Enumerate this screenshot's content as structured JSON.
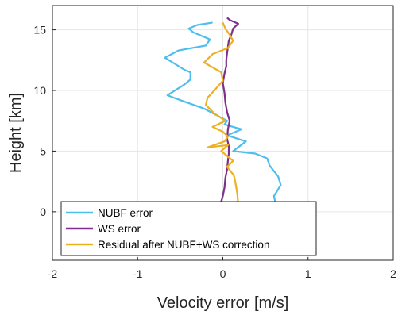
{
  "chart_data": {
    "type": "line",
    "title": "",
    "xlabel": "Velocity error [m/s]",
    "ylabel": "Height [km]",
    "xlim": [
      -2,
      2
    ],
    "ylim": [
      -4,
      17
    ],
    "xticks": [
      -2,
      -1,
      0,
      1,
      2
    ],
    "yticks": [
      0,
      5,
      10,
      15
    ],
    "grid": true,
    "legend_position": "bottom-left",
    "series": [
      {
        "name": "NUBF error",
        "color": "#4DBEEE",
        "x": [
          1.1,
          0.62,
          0.6,
          0.68,
          0.65,
          0.55,
          0.52,
          0.38,
          0.12,
          0.27,
          0.05,
          0.22,
          0.02,
          0.05,
          -0.22,
          -0.5,
          -0.65,
          -0.45,
          -0.38,
          -0.38,
          -0.45,
          -0.68,
          -0.52,
          -0.2,
          -0.15,
          -0.35,
          -0.4,
          -0.3,
          -0.12
        ],
        "y": [
          0.1,
          0.6,
          1.3,
          2.2,
          2.9,
          3.8,
          4.4,
          4.8,
          5.0,
          5.8,
          6.3,
          6.8,
          7.2,
          7.5,
          8.5,
          9.2,
          9.6,
          10.5,
          10.9,
          11.5,
          11.7,
          12.7,
          13.3,
          13.7,
          14.2,
          14.8,
          15.1,
          15.4,
          15.6
        ]
      },
      {
        "name": "WS error",
        "color": "#7E2F8E",
        "x": [
          -0.03,
          0.0,
          0.02,
          0.03,
          0.05,
          0.06,
          0.07,
          0.07,
          0.05,
          0.06,
          0.08,
          0.05,
          0.03,
          0.02,
          0.0,
          0.02,
          0.04,
          0.04,
          0.05,
          0.06,
          0.07,
          0.1,
          0.12,
          0.18,
          0.08,
          0.05
        ],
        "y": [
          0.6,
          1.3,
          2.0,
          2.8,
          3.5,
          4.2,
          4.8,
          5.4,
          6.0,
          6.8,
          7.5,
          8.2,
          9.0,
          9.8,
          10.6,
          11.4,
          12.0,
          12.5,
          13.1,
          13.6,
          14.1,
          14.6,
          15.1,
          15.5,
          15.8,
          16.0
        ]
      },
      {
        "name": "Residual after NUBF+WS correction",
        "color": "#EDB120",
        "x": [
          0.18,
          0.17,
          0.15,
          0.13,
          0.05,
          0.12,
          -0.02,
          0.06,
          -0.18,
          0.02,
          0.06,
          0.0,
          -0.12,
          0.03,
          -0.1,
          -0.2,
          -0.18,
          -0.1,
          0.0,
          -0.02,
          -0.22,
          -0.12,
          0.06,
          0.12,
          0.08,
          0.03,
          0.0
        ],
        "y": [
          0.6,
          1.5,
          2.3,
          3.0,
          3.7,
          4.2,
          5.0,
          5.5,
          5.3,
          5.8,
          6.2,
          6.6,
          7.0,
          7.5,
          8.1,
          8.8,
          9.4,
          10.0,
          10.8,
          11.5,
          12.3,
          13.0,
          13.5,
          14.1,
          14.6,
          15.1,
          15.6
        ]
      }
    ]
  }
}
